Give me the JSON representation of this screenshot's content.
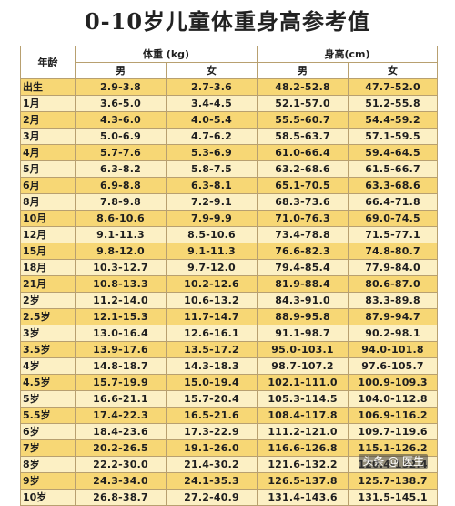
{
  "title": "0-10岁儿童体重身高参考值",
  "headers": {
    "age": "年龄",
    "weight": "体重 (kg)",
    "height": "身高(cm)",
    "male": "男",
    "female": "女"
  },
  "rows": [
    {
      "age": "出生",
      "wm": "2.9-3.8",
      "wf": "2.7-3.6",
      "hm": "48.2-52.8",
      "hf": "47.7-52.0"
    },
    {
      "age": "1月",
      "wm": "3.6-5.0",
      "wf": "3.4-4.5",
      "hm": "52.1-57.0",
      "hf": "51.2-55.8"
    },
    {
      "age": "2月",
      "wm": "4.3-6.0",
      "wf": "4.0-5.4",
      "hm": "55.5-60.7",
      "hf": "54.4-59.2"
    },
    {
      "age": "3月",
      "wm": "5.0-6.9",
      "wf": "4.7-6.2",
      "hm": "58.5-63.7",
      "hf": "57.1-59.5"
    },
    {
      "age": "4月",
      "wm": "5.7-7.6",
      "wf": "5.3-6.9",
      "hm": "61.0-66.4",
      "hf": "59.4-64.5"
    },
    {
      "age": "5月",
      "wm": "6.3-8.2",
      "wf": "5.8-7.5",
      "hm": "63.2-68.6",
      "hf": "61.5-66.7"
    },
    {
      "age": "6月",
      "wm": "6.9-8.8",
      "wf": "6.3-8.1",
      "hm": "65.1-70.5",
      "hf": "63.3-68.6"
    },
    {
      "age": "8月",
      "wm": "7.8-9.8",
      "wf": "7.2-9.1",
      "hm": "68.3-73.6",
      "hf": "66.4-71.8"
    },
    {
      "age": "10月",
      "wm": "8.6-10.6",
      "wf": "7.9-9.9",
      "hm": "71.0-76.3",
      "hf": "69.0-74.5"
    },
    {
      "age": "12月",
      "wm": "9.1-11.3",
      "wf": "8.5-10.6",
      "hm": "73.4-78.8",
      "hf": "71.5-77.1"
    },
    {
      "age": "15月",
      "wm": "9.8-12.0",
      "wf": "9.1-11.3",
      "hm": "76.6-82.3",
      "hf": "74.8-80.7"
    },
    {
      "age": "18月",
      "wm": "10.3-12.7",
      "wf": "9.7-12.0",
      "hm": "79.4-85.4",
      "hf": "77.9-84.0"
    },
    {
      "age": "21月",
      "wm": "10.8-13.3",
      "wf": "10.2-12.6",
      "hm": "81.9-88.4",
      "hf": "80.6-87.0"
    },
    {
      "age": "2岁",
      "wm": "11.2-14.0",
      "wf": "10.6-13.2",
      "hm": "84.3-91.0",
      "hf": "83.3-89.8"
    },
    {
      "age": "2.5岁",
      "wm": "12.1-15.3",
      "wf": "11.7-14.7",
      "hm": "88.9-95.8",
      "hf": "87.9-94.7"
    },
    {
      "age": "3岁",
      "wm": "13.0-16.4",
      "wf": "12.6-16.1",
      "hm": "91.1-98.7",
      "hf": "90.2-98.1"
    },
    {
      "age": "3.5岁",
      "wm": "13.9-17.6",
      "wf": "13.5-17.2",
      "hm": "95.0-103.1",
      "hf": "94.0-101.8"
    },
    {
      "age": "4岁",
      "wm": "14.8-18.7",
      "wf": "14.3-18.3",
      "hm": "98.7-107.2",
      "hf": "97.6-105.7"
    },
    {
      "age": "4.5岁",
      "wm": "15.7-19.9",
      "wf": "15.0-19.4",
      "hm": "102.1-111.0",
      "hf": "100.9-109.3"
    },
    {
      "age": "5岁",
      "wm": "16.6-21.1",
      "wf": "15.7-20.4",
      "hm": "105.3-114.5",
      "hf": "104.0-112.8"
    },
    {
      "age": "5.5岁",
      "wm": "17.4-22.3",
      "wf": "16.5-21.6",
      "hm": "108.4-117.8",
      "hf": "106.9-116.2"
    },
    {
      "age": "6岁",
      "wm": "18.4-23.6",
      "wf": "17.3-22.9",
      "hm": "111.2-121.0",
      "hf": "109.7-119.6"
    },
    {
      "age": "7岁",
      "wm": "20.2-26.5",
      "wf": "19.1-26.0",
      "hm": "116.6-126.8",
      "hf": "115.1-126.2"
    },
    {
      "age": "8岁",
      "wm": "22.2-30.0",
      "wf": "21.4-30.2",
      "hm": "121.6-132.2",
      "hf": "120.4-132.4"
    },
    {
      "age": "9岁",
      "wm": "24.3-34.0",
      "wf": "24.1-35.3",
      "hm": "126.5-137.8",
      "hf": "125.7-138.7"
    },
    {
      "age": "10岁",
      "wm": "26.8-38.7",
      "wf": "27.2-40.9",
      "hm": "131.4-143.6",
      "hf": "131.5-145.1"
    }
  ],
  "watermark": "头条 @ 医生"
}
